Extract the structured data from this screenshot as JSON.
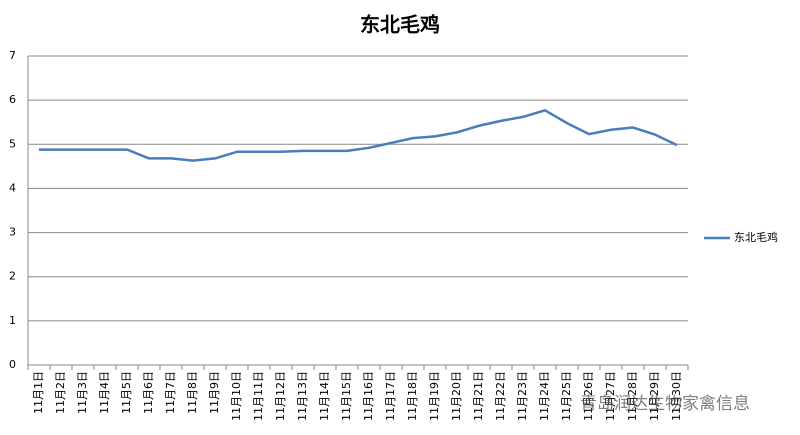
{
  "chart_data": {
    "type": "line",
    "title": "东北毛鸡",
    "categories": [
      "11月1日",
      "11月2日",
      "11月3日",
      "11月4日",
      "11月5日",
      "11月6日",
      "11月7日",
      "11月8日",
      "11月9日",
      "11月10日",
      "11月11日",
      "11月12日",
      "11月13日",
      "11月14日",
      "11月15日",
      "11月16日",
      "11月17日",
      "11月18日",
      "11月19日",
      "11月20日",
      "11月21日",
      "11月22日",
      "11月23日",
      "11月24日",
      "11月25日",
      "11月26日",
      "11月27日",
      "11月28日",
      "11月29日",
      "11月30日"
    ],
    "series": [
      {
        "name": "东北毛鸡",
        "color": "#4a7ebb",
        "values": [
          4.88,
          4.88,
          4.88,
          4.88,
          4.88,
          4.68,
          4.68,
          4.63,
          4.68,
          4.83,
          4.83,
          4.83,
          4.85,
          4.85,
          4.85,
          4.92,
          5.03,
          5.14,
          5.18,
          5.27,
          5.42,
          5.53,
          5.62,
          5.77,
          5.48,
          5.23,
          5.33,
          5.38,
          5.22,
          4.98
        ]
      }
    ],
    "ylim": [
      0,
      7
    ],
    "yticks": [
      0,
      1,
      2,
      3,
      4,
      5,
      6,
      7
    ],
    "grid": true,
    "legend": "right",
    "watermark": "青岛润达生物家禽信息"
  }
}
